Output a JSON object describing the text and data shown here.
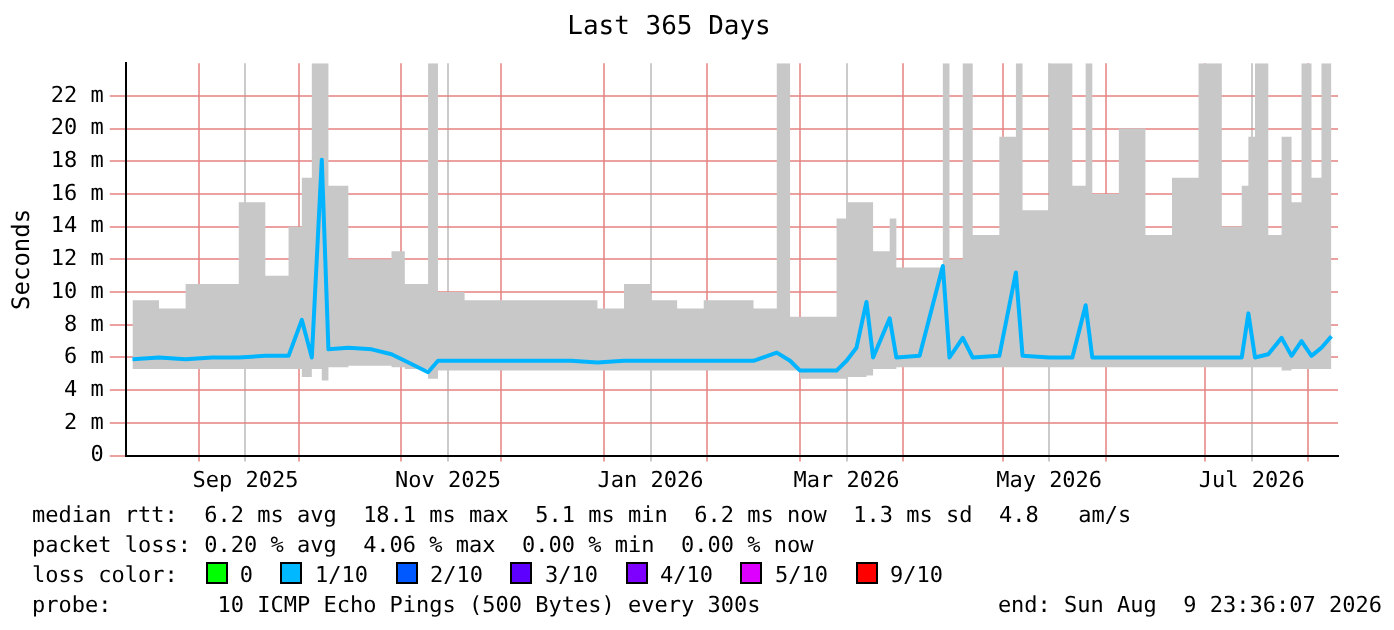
{
  "chart_data": {
    "type": "line",
    "title": "Last 365 Days",
    "ylabel": "Seconds",
    "xlim": [
      "2025-08-09T23:36",
      "2026-08-09T23:36"
    ],
    "xticks": [
      {
        "value": "2025-09-01",
        "label": null
      },
      {
        "value": "2025-09-15",
        "label": "Sep 2025"
      },
      {
        "value": "2025-10-01",
        "label": null
      },
      {
        "value": "2025-11-01",
        "label": null
      },
      {
        "value": "2025-11-15",
        "label": "Nov 2025"
      },
      {
        "value": "2025-12-01",
        "label": null
      },
      {
        "value": "2026-01-01",
        "label": null
      },
      {
        "value": "2026-01-15",
        "label": "Jan 2026"
      },
      {
        "value": "2026-02-01",
        "label": null
      },
      {
        "value": "2026-03-01",
        "label": null
      },
      {
        "value": "2026-03-15",
        "label": "Mar 2026"
      },
      {
        "value": "2026-04-01",
        "label": null
      },
      {
        "value": "2026-05-01",
        "label": null
      },
      {
        "value": "2026-05-15",
        "label": "May 2026"
      },
      {
        "value": "2026-06-01",
        "label": null
      },
      {
        "value": "2026-07-01",
        "label": null
      },
      {
        "value": "2026-07-15",
        "label": "Jul 2026"
      },
      {
        "value": "2026-08-01",
        "label": null
      }
    ],
    "ylim": [
      0,
      24
    ],
    "yticks": [
      0,
      {
        "value": 2,
        "label": "2 m"
      },
      {
        "value": 4,
        "label": "4 m"
      },
      {
        "value": 6,
        "label": "6 m"
      },
      {
        "value": 8,
        "label": "8 m"
      },
      {
        "value": 10,
        "label": "10 m"
      },
      {
        "value": 12,
        "label": "12 m"
      },
      {
        "value": 14,
        "label": "14 m"
      },
      {
        "value": 16,
        "label": "16 m"
      },
      {
        "value": 18,
        "label": "18 m"
      },
      {
        "value": 20,
        "label": "20 m"
      },
      {
        "value": 22,
        "label": "22 m"
      }
    ],
    "grid": true,
    "legend": false,
    "marker": "none",
    "line_style": "solid",
    "x": [
      "2025-08-12",
      "2025-08-20",
      "2025-08-28",
      "2025-09-05",
      "2025-09-13",
      "2025-09-21",
      "2025-09-28",
      "2025-10-02",
      "2025-10-05",
      "2025-10-08",
      "2025-10-10",
      "2025-10-16",
      "2025-10-23",
      "2025-10-29",
      "2025-11-02",
      "2025-11-09",
      "2025-11-12",
      "2025-11-20",
      "2025-11-28",
      "2025-12-06",
      "2025-12-14",
      "2025-12-22",
      "2025-12-30",
      "2026-01-07",
      "2026-01-15",
      "2026-01-23",
      "2026-01-31",
      "2026-02-08",
      "2026-02-15",
      "2026-02-22",
      "2026-02-26",
      "2026-03-01",
      "2026-03-12",
      "2026-03-15",
      "2026-03-18",
      "2026-03-21",
      "2026-03-23",
      "2026-03-28",
      "2026-03-30",
      "2026-04-06",
      "2026-04-13",
      "2026-04-15",
      "2026-04-19",
      "2026-04-22",
      "2026-04-30",
      "2026-05-05",
      "2026-05-07",
      "2026-05-15",
      "2026-05-22",
      "2026-05-26",
      "2026-05-28",
      "2026-06-05",
      "2026-06-13",
      "2026-06-21",
      "2026-06-29",
      "2026-07-06",
      "2026-07-12",
      "2026-07-14",
      "2026-07-16",
      "2026-07-20",
      "2026-07-24",
      "2026-07-27",
      "2026-07-30",
      "2026-08-02",
      "2026-08-05",
      "2026-08-08"
    ],
    "series": [
      {
        "color": "#00b4ff",
        "values": [
          5.9,
          6.0,
          5.9,
          6.0,
          6.0,
          6.1,
          6.1,
          8.3,
          6.0,
          18.1,
          6.5,
          6.6,
          6.5,
          6.2,
          5.8,
          5.1,
          5.8,
          5.8,
          5.8,
          5.8,
          5.8,
          5.8,
          5.7,
          5.8,
          5.8,
          5.8,
          5.8,
          5.8,
          5.8,
          6.3,
          5.8,
          5.2,
          5.2,
          5.8,
          6.6,
          9.4,
          6.0,
          8.4,
          6.0,
          6.1,
          11.6,
          6.0,
          7.2,
          6.0,
          6.1,
          11.2,
          6.1,
          6.0,
          6.0,
          9.2,
          6.0,
          6.0,
          6.0,
          6.0,
          6.0,
          6.0,
          6.0,
          8.7,
          6.0,
          6.2,
          7.2,
          6.1,
          7.0,
          6.1,
          6.6,
          7.3
        ],
        "lower": [
          5.3,
          5.3,
          5.3,
          5.3,
          5.3,
          5.3,
          5.3,
          4.8,
          5.3,
          4.6,
          5.4,
          5.5,
          5.5,
          5.4,
          5.3,
          4.7,
          5.2,
          5.2,
          5.2,
          5.2,
          5.2,
          5.2,
          5.2,
          5.2,
          5.2,
          5.2,
          5.2,
          5.2,
          5.2,
          5.2,
          5.2,
          4.7,
          4.7,
          4.8,
          4.8,
          4.9,
          5.3,
          5.3,
          5.4,
          5.4,
          5.4,
          5.4,
          5.4,
          5.4,
          5.4,
          5.4,
          5.4,
          5.4,
          5.4,
          5.4,
          5.4,
          5.4,
          5.4,
          5.4,
          5.4,
          5.4,
          5.4,
          5.4,
          5.4,
          5.4,
          5.2,
          5.3,
          5.3,
          5.3,
          5.3,
          5.3
        ],
        "upper": [
          9.5,
          9,
          10.5,
          10.5,
          15.5,
          11,
          14,
          17,
          24,
          24,
          16.5,
          12,
          12,
          12.5,
          10.5,
          24,
          10,
          9.5,
          9.5,
          9.5,
          9.5,
          9.5,
          9,
          10.5,
          9.5,
          9,
          9.5,
          9.5,
          9,
          24,
          8.5,
          8.5,
          14.5,
          15.5,
          15.5,
          15.5,
          12.5,
          14.5,
          11.5,
          11.5,
          24,
          12,
          24,
          13.5,
          19.5,
          24,
          15,
          24,
          16.5,
          24,
          16,
          20,
          13.5,
          17,
          24,
          14,
          16.5,
          19.5,
          24,
          13.5,
          19.5,
          15.5,
          24,
          17,
          24,
          14.5
        ]
      }
    ],
    "annotations": [
      "median rtt:  6.2 ms avg  18.1 ms max  5.1 ms min  6.2 ms now  1.3 ms sd  4.8   am/s",
      "packet loss: 0.20 % avg  4.06 % max  0.00 % min  0.00 % now",
      "loss color:",
      "0",
      "1/10",
      "2/10",
      "3/10",
      "4/10",
      "5/10",
      "9/10",
      "probe:        10 ICMP Echo Pings (500 Bytes) every 300s",
      "end: Sun Aug  9 23:36:07 2026"
    ]
  }
}
